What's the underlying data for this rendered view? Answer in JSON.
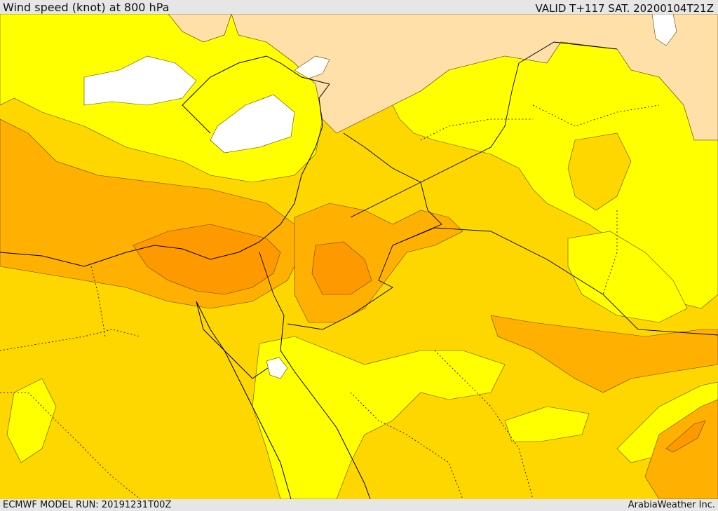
{
  "header": {
    "title": "Wind speed (knot) at 800 hPa",
    "valid_time": "VALID T+117 SAT. 20200104T21Z"
  },
  "footer": {
    "model_run": "ECMWF MODEL RUN: 20191231T00Z",
    "credit": "ArabiaWeather Inc."
  },
  "palette": {
    "very_light": "#ffffff",
    "light": "#ffe0a8",
    "yellow": "#ffff00",
    "gold": "#ffd700",
    "amber": "#ffb000",
    "orange": "#ff9900",
    "contour": "#5a4a00",
    "border": "#000000"
  }
}
